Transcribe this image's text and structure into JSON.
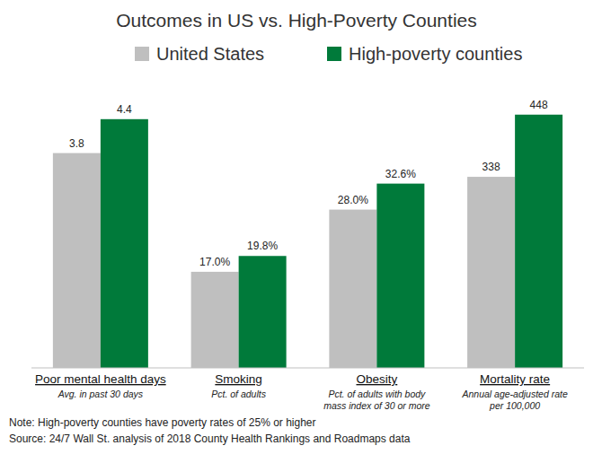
{
  "chart_data": [
    {
      "type": "bar",
      "title": "Outcomes in US vs. High-Poverty Counties",
      "categories": [
        "Poor mental health days"
      ],
      "xlabel": "Avg. in past 30 days",
      "series": [
        {
          "name": "United States",
          "color": "#bfbfbf",
          "values": [
            3.8
          ]
        },
        {
          "name": "High-poverty counties",
          "color": "#007a3a",
          "values": [
            4.4
          ]
        }
      ],
      "ylim": [
        0,
        5
      ],
      "tick_labels": false,
      "grid": false,
      "data_labels": true,
      "legend": "top",
      "annotations": [
        "Note: High-poverty counties have poverty rates of 25% or higher",
        "Source: 24/7 Wall St. analysis of 2018 County Health Rankings and Roadmaps data"
      ]
    },
    {
      "type": "bar",
      "categories": [
        "Smoking"
      ],
      "xlabel": "Pct. of adults",
      "series": [
        {
          "color": "#bfbfbf",
          "values": [
            17.0
          ],
          "value_labels": [
            "17.0%"
          ]
        },
        {
          "color": "#007a3a",
          "values": [
            19.8
          ],
          "value_labels": [
            "19.8%"
          ]
        }
      ],
      "ylim": [
        0,
        50
      ],
      "tick_labels": false,
      "grid": false,
      "data_labels": true
    },
    {
      "type": "bar",
      "categories": [
        "Obesity"
      ],
      "xlabel": "Pct. of adults with body\nmass index of 30 or more",
      "series": [
        {
          "color": "#bfbfbf",
          "values": [
            28.0
          ],
          "value_labels": [
            "28.0%"
          ]
        },
        {
          "color": "#007a3a",
          "values": [
            32.6
          ],
          "value_labels": [
            "32.6%"
          ]
        }
      ],
      "ylim": [
        0,
        50
      ],
      "tick_labels": false,
      "grid": false,
      "data_labels": true
    },
    {
      "type": "bar",
      "categories": [
        "Mortality rate"
      ],
      "xlabel": "Annual age-adjusted rate\nper 100,000",
      "series": [
        {
          "color": "#bfbfbf",
          "values": [
            338
          ]
        },
        {
          "color": "#007a3a",
          "values": [
            448
          ]
        }
      ],
      "ylim": [
        0,
        500
      ],
      "tick_labels": false,
      "grid": false,
      "data_labels": true
    }
  ]
}
